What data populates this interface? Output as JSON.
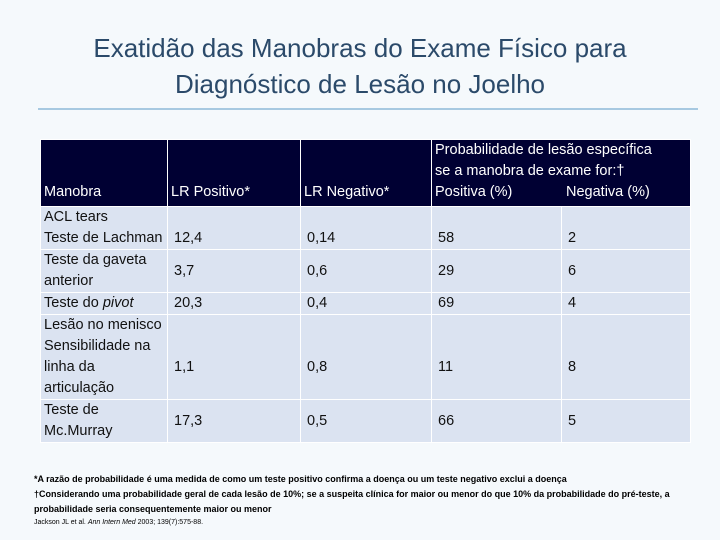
{
  "title": {
    "line1": "Exatidão das Manobras do Exame Físico para",
    "line2": "Diagnóstico de Lesão no Joelho"
  },
  "table": {
    "headers": {
      "manobra": "Manobra",
      "lr_pos": "LR Positivo*",
      "lr_neg": "LR Negativo*",
      "prob_group_line1": "Probabilidade de lesão específica",
      "prob_group_line2": "se a manobra de exame for:†",
      "prob_pos": "Positiva (%)",
      "prob_neg": "Negativa (%)"
    },
    "sections": {
      "acl": "ACL tears",
      "menisco": "Lesão no menisco"
    },
    "rows": [
      {
        "name": "Teste de Lachman",
        "lr_pos": "12,4",
        "lr_neg": "0,14",
        "prob_pos": "58",
        "prob_neg": "2"
      },
      {
        "name": "Teste da gaveta anterior",
        "lr_pos": "3,7",
        "lr_neg": "0,6",
        "prob_pos": "29",
        "prob_neg": "6"
      },
      {
        "name_prefix": "Teste do ",
        "name_italic": "pivot",
        "lr_pos": "20,3",
        "lr_neg": "0,4",
        "prob_pos": "69",
        "prob_neg": "4"
      },
      {
        "name": "Sensibilidade na linha da articulação",
        "lr_pos": "1,1",
        "lr_neg": "0,8",
        "prob_pos": "11",
        "prob_neg": "8"
      },
      {
        "name": "Teste de Mc.Murray",
        "lr_pos": "17,3",
        "lr_neg": "0,5",
        "prob_pos": "66",
        "prob_neg": "5"
      }
    ]
  },
  "footnotes": {
    "note1": "*A razão de probabilidade é uma medida de como um teste positivo confirma a doença ou um teste negativo exclui a doença",
    "note2": "†Considerando uma probabilidade geral de cada lesão de 10%; se a suspeita clínica for maior ou menor do que 10% da probabilidade do pré-teste, a probabilidade seria consequentemente maior ou menor",
    "ref_authors": "Jackson JL et al. ",
    "ref_journal": "Ann Intern Med",
    "ref_rest": " 2003; 139(7):575-88."
  }
}
